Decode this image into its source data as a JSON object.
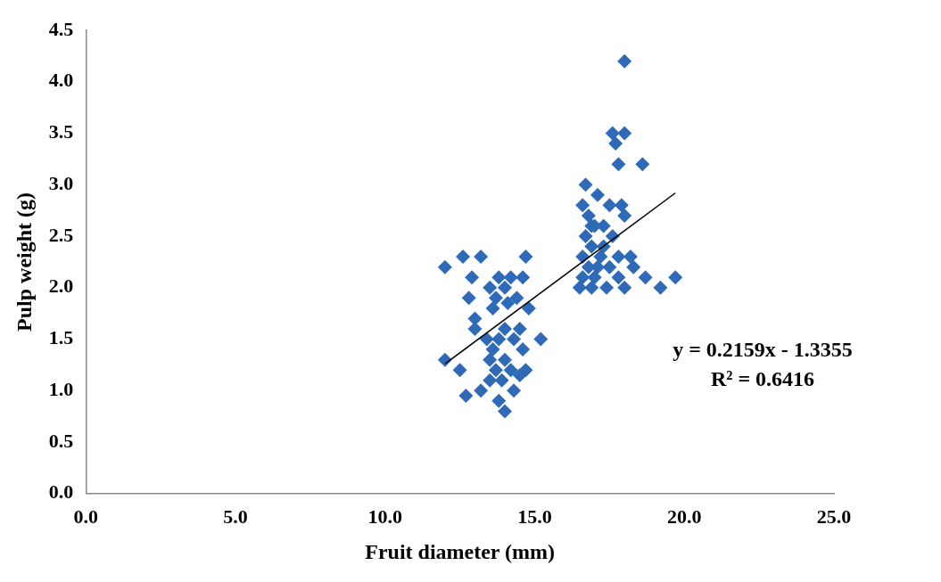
{
  "chart_data": {
    "type": "scatter",
    "xlabel": "Fruit diameter (mm)",
    "ylabel": "Pulp weight (g)",
    "xlim": [
      0,
      25
    ],
    "ylim": [
      0,
      4.5
    ],
    "xticks": [
      {
        "value": 0,
        "label": "0.0"
      },
      {
        "value": 5,
        "label": "5.0"
      },
      {
        "value": 10,
        "label": "10.0"
      },
      {
        "value": 15,
        "label": "15.0"
      },
      {
        "value": 20,
        "label": "20.0"
      },
      {
        "value": 25,
        "label": "25.0"
      }
    ],
    "yticks": [
      {
        "value": 0,
        "label": "0.0"
      },
      {
        "value": 0.5,
        "label": "0.5"
      },
      {
        "value": 1,
        "label": "1.0"
      },
      {
        "value": 1.5,
        "label": "1.5"
      },
      {
        "value": 2,
        "label": "2.0"
      },
      {
        "value": 2.5,
        "label": "2.5"
      },
      {
        "value": 3,
        "label": "3.0"
      },
      {
        "value": 3.5,
        "label": "3.5"
      },
      {
        "value": 4,
        "label": "4.0"
      },
      {
        "value": 4.5,
        "label": "4.5"
      }
    ],
    "grid": false,
    "legend": false,
    "marker": "diamond",
    "series": [
      {
        "color": "#2e6ab7",
        "x": [
          12.0,
          12.6,
          13.2,
          12.9,
          12.8,
          13.0,
          13.0,
          13.5,
          13.7,
          13.8,
          14.0,
          14.2,
          14.4,
          14.6,
          14.7,
          14.1,
          13.6,
          14.8,
          13.4,
          13.6,
          13.8,
          14.0,
          14.3,
          14.5,
          15.2,
          12.0,
          12.5,
          12.7,
          13.2,
          13.5,
          13.7,
          14.0,
          14.2,
          14.5,
          14.7,
          14.6,
          13.8,
          14.0,
          14.3,
          13.9,
          13.5,
          18.0,
          17.6,
          18.0,
          17.7,
          17.8,
          18.6,
          16.7,
          17.1,
          16.6,
          17.5,
          17.9,
          18.0,
          16.8,
          17.0,
          17.3,
          17.6,
          16.7,
          16.9,
          17.2,
          17.5,
          16.6,
          16.8,
          17.0,
          16.5,
          16.9,
          17.4,
          17.8,
          18.0,
          18.3,
          18.7,
          19.2,
          19.7,
          18.2,
          17.8,
          16.6,
          17.1,
          16.9,
          17.3
        ],
        "values": [
          2.2,
          2.3,
          2.3,
          2.1,
          1.9,
          1.7,
          1.6,
          2.0,
          1.9,
          2.1,
          2.0,
          2.1,
          1.9,
          2.1,
          2.3,
          1.85,
          1.8,
          1.8,
          1.5,
          1.4,
          1.5,
          1.6,
          1.5,
          1.6,
          1.5,
          1.3,
          1.2,
          0.95,
          1.0,
          1.1,
          1.2,
          1.3,
          1.2,
          1.15,
          1.2,
          1.4,
          0.9,
          0.8,
          1.0,
          1.1,
          1.3,
          4.2,
          3.5,
          3.5,
          3.4,
          3.2,
          3.2,
          3.0,
          2.9,
          2.8,
          2.8,
          2.8,
          2.7,
          2.7,
          2.6,
          2.6,
          2.5,
          2.5,
          2.4,
          2.3,
          2.2,
          2.3,
          2.2,
          2.1,
          2.0,
          2.0,
          2.0,
          2.1,
          2.0,
          2.2,
          2.1,
          2.0,
          2.1,
          2.3,
          2.3,
          2.1,
          2.2,
          2.6,
          2.4
        ]
      },
      {
        "type": "line",
        "color": "#000000",
        "marker": "none",
        "line_style": "solid",
        "x": [
          12.0,
          19.7
        ],
        "values": [
          1.26,
          2.92
        ]
      }
    ],
    "annotations": [
      "y = 0.2159x - 1.3355",
      "R² = 0.6416"
    ]
  }
}
